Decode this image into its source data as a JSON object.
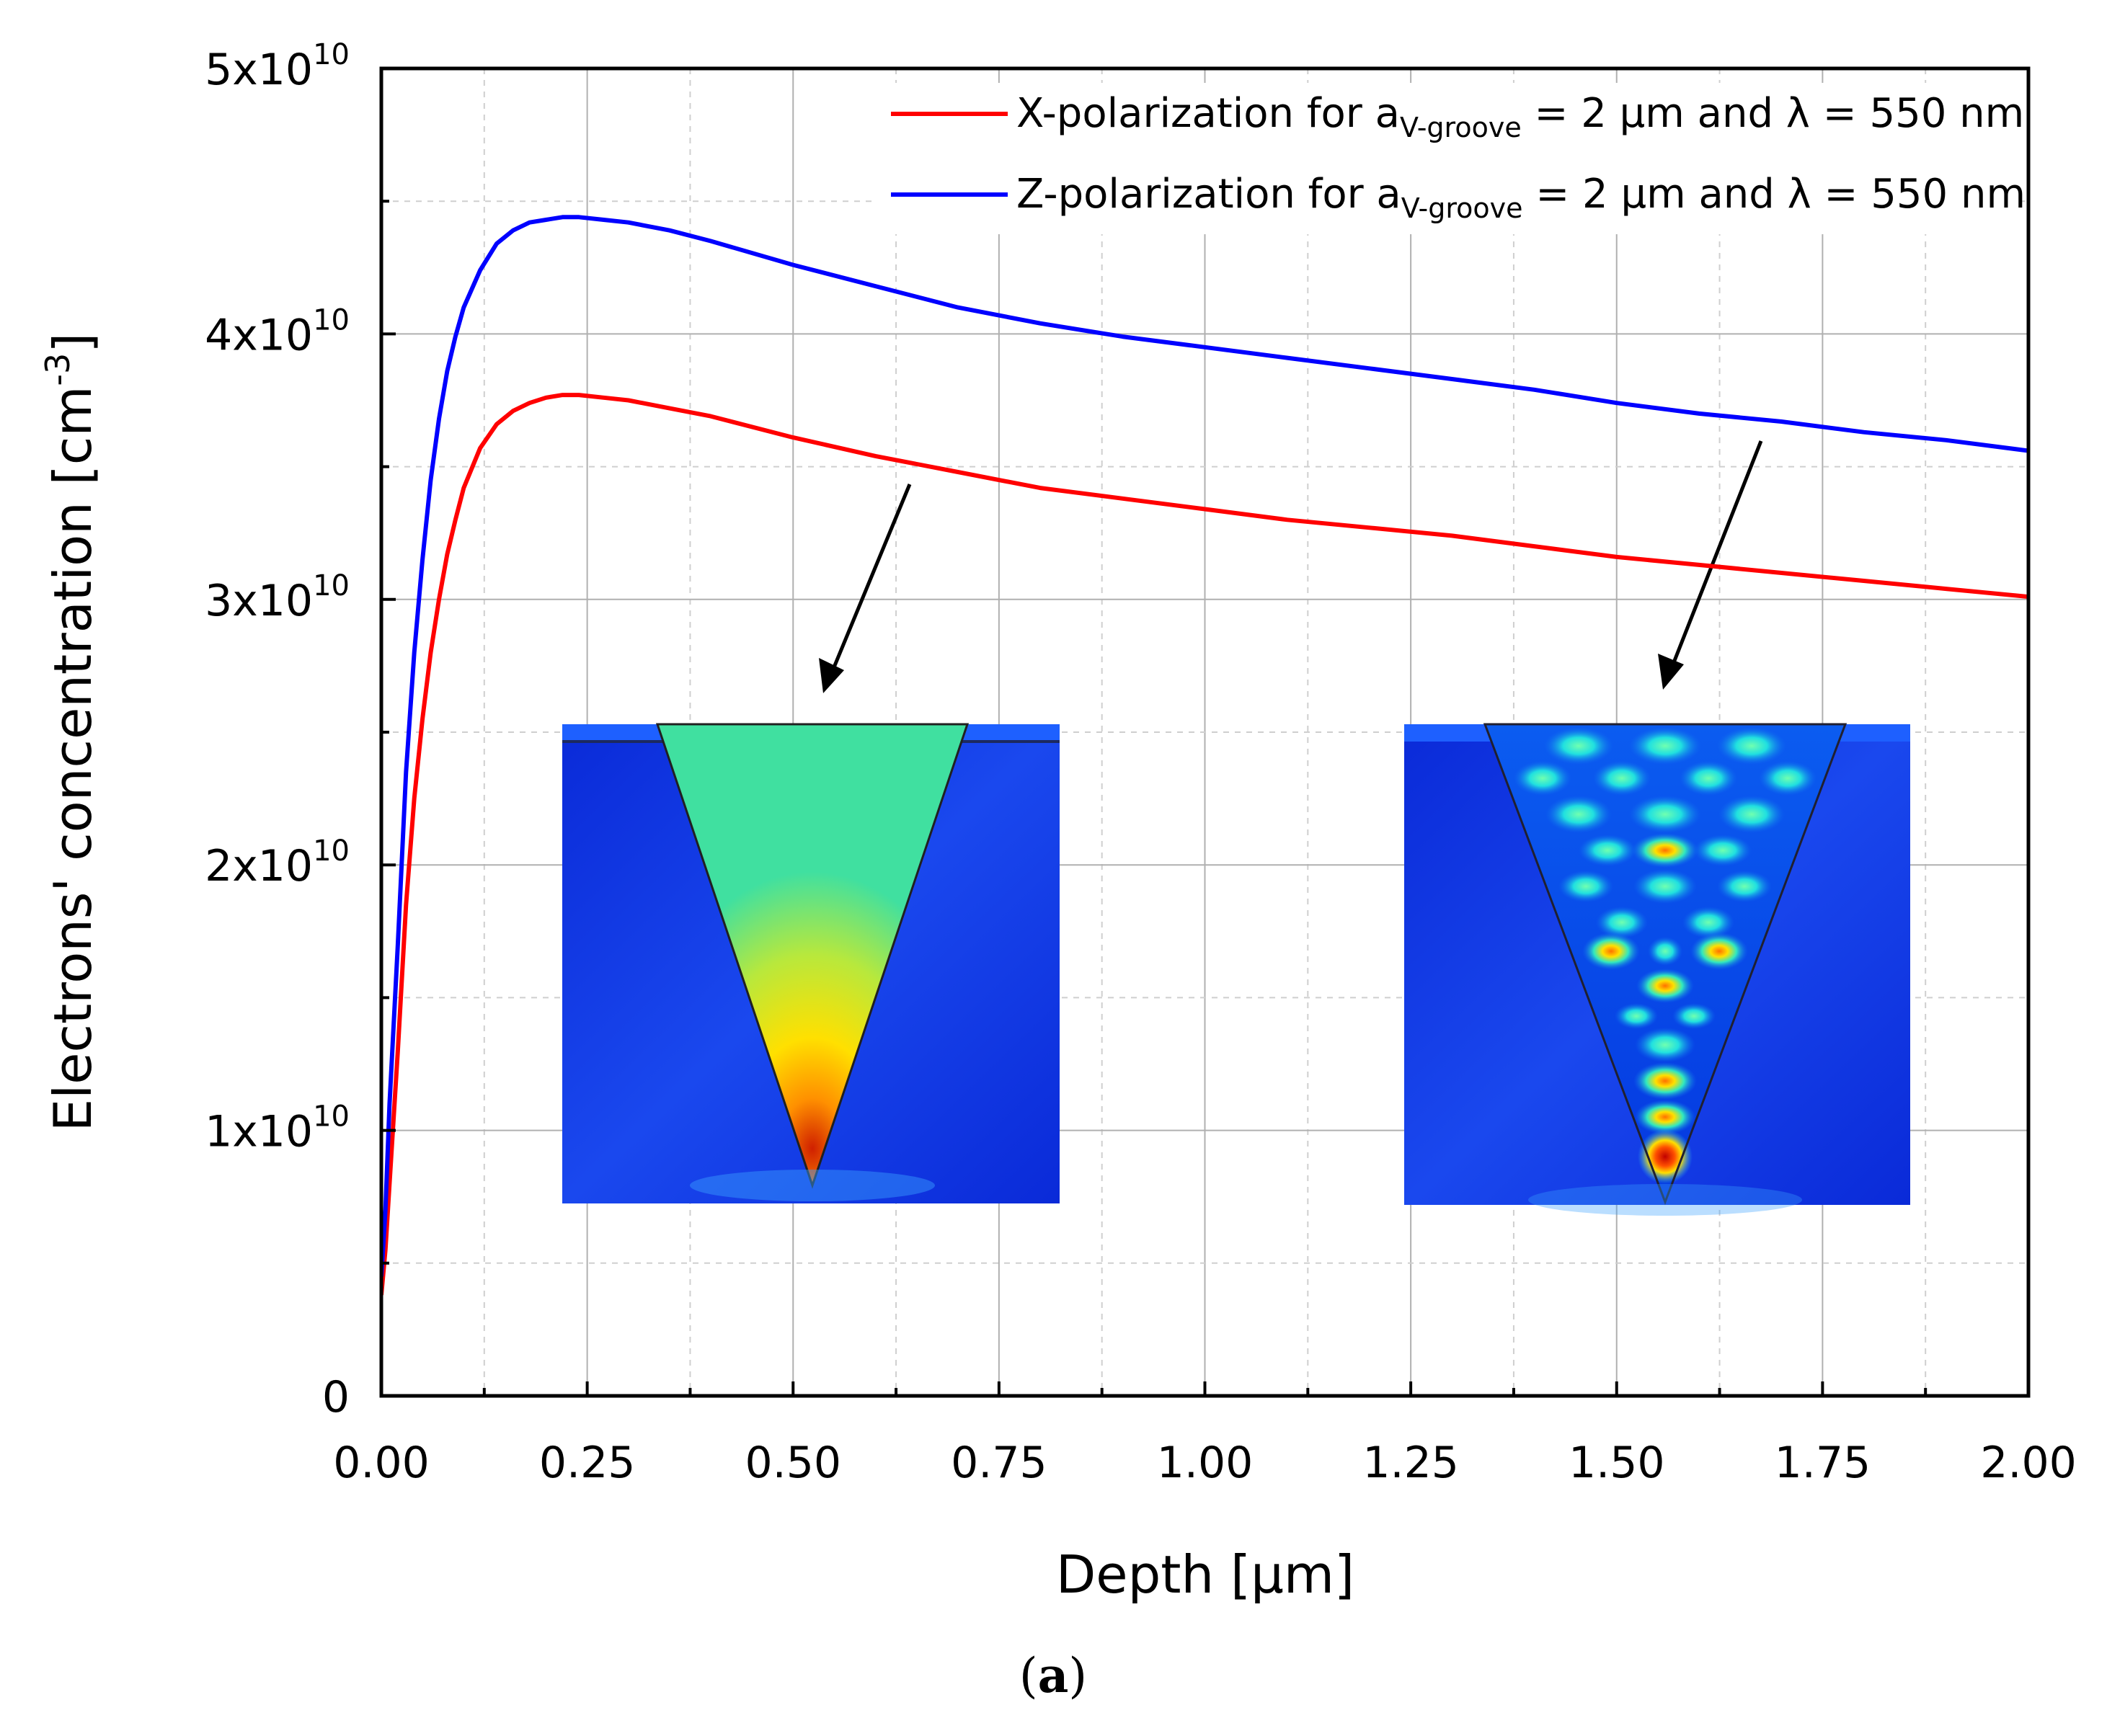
{
  "chart_data": {
    "type": "line",
    "xlabel": "Depth [μm]",
    "ylabel_main": "Electrons' concentration [cm",
    "ylabel_sup": "-3",
    "xlim": [
      0,
      2
    ],
    "ylim": [
      0,
      50000000000.0
    ],
    "x_ticks": [
      0,
      0.25,
      0.5,
      0.75,
      1.0,
      1.25,
      1.5,
      1.75,
      2.0
    ],
    "x_tick_labels": [
      "0.00",
      "0.25",
      "0.50",
      "0.75",
      "1.00",
      "1.25",
      "1.50",
      "1.75",
      "2.00"
    ],
    "y_ticks": [
      0,
      10000000000.0,
      20000000000.0,
      30000000000.0,
      40000000000.0,
      50000000000.0
    ],
    "y_tick_labels": [
      {
        "base": "0",
        "exp": ""
      },
      {
        "base": "1x10",
        "exp": "10"
      },
      {
        "base": "2x10",
        "exp": "10"
      },
      {
        "base": "3x10",
        "exp": "10"
      },
      {
        "base": "4x10",
        "exp": "10"
      },
      {
        "base": "5x10",
        "exp": "10"
      }
    ],
    "grid": true,
    "legend_position": "top-right",
    "series": [
      {
        "name": "X-polarization",
        "legend": {
          "pre": "X-polarization for a",
          "sub": "V-groove",
          "post": " = 2 μm and λ = 550 nm"
        },
        "color": "#ff0000",
        "x": [
          0.0,
          0.005,
          0.01,
          0.02,
          0.03,
          0.04,
          0.05,
          0.06,
          0.07,
          0.08,
          0.09,
          0.1,
          0.12,
          0.14,
          0.16,
          0.18,
          0.2,
          0.22,
          0.24,
          0.27,
          0.3,
          0.35,
          0.4,
          0.5,
          0.6,
          0.7,
          0.8,
          0.9,
          1.0,
          1.1,
          1.2,
          1.3,
          1.4,
          1.5,
          1.6,
          1.7,
          1.8,
          1.9,
          2.0
        ],
        "y": [
          3800000000.0,
          5500000000.0,
          8000000000.0,
          13000000000.0,
          18500000000.0,
          22500000000.0,
          25500000000.0,
          28000000000.0,
          30000000000.0,
          31700000000.0,
          33000000000.0,
          34200000000.0,
          35700000000.0,
          36600000000.0,
          37100000000.0,
          37400000000.0,
          37600000000.0,
          37700000000.0,
          37700000000.0,
          37600000000.0,
          37500000000.0,
          37200000000.0,
          36900000000.0,
          36100000000.0,
          35400000000.0,
          34800000000.0,
          34200000000.0,
          33800000000.0,
          33400000000.0,
          33000000000.0,
          32700000000.0,
          32400000000.0,
          32000000000.0,
          31600000000.0,
          31300000000.0,
          31000000000.0,
          30700000000.0,
          30400000000.0,
          30100000000.0
        ]
      },
      {
        "name": "Z-polarization",
        "legend": {
          "pre": "Z-polarization for a",
          "sub": "V-groove",
          "post": " = 2 μm and λ = 550 nm"
        },
        "color": "#0000ff",
        "x": [
          0.0,
          0.005,
          0.01,
          0.02,
          0.03,
          0.04,
          0.05,
          0.06,
          0.07,
          0.08,
          0.09,
          0.1,
          0.12,
          0.14,
          0.16,
          0.18,
          0.2,
          0.22,
          0.24,
          0.27,
          0.3,
          0.35,
          0.4,
          0.5,
          0.6,
          0.7,
          0.8,
          0.9,
          1.0,
          1.1,
          1.2,
          1.3,
          1.4,
          1.5,
          1.6,
          1.7,
          1.8,
          1.9,
          2.0
        ],
        "y": [
          4500000000.0,
          7000000000.0,
          11000000000.0,
          17000000000.0,
          23500000000.0,
          28000000000.0,
          31500000000.0,
          34500000000.0,
          36800000000.0,
          38600000000.0,
          39900000000.0,
          41000000000.0,
          42400000000.0,
          43400000000.0,
          43900000000.0,
          44200000000.0,
          44300000000.0,
          44400000000.0,
          44400000000.0,
          44300000000.0,
          44200000000.0,
          43900000000.0,
          43500000000.0,
          42600000000.0,
          41800000000.0,
          41000000000.0,
          40400000000.0,
          39900000000.0,
          39500000000.0,
          39100000000.0,
          38700000000.0,
          38300000000.0,
          37900000000.0,
          37400000000.0,
          37000000000.0,
          36700000000.0,
          36300000000.0,
          36000000000.0,
          35600000000.0
        ]
      }
    ]
  },
  "panel_label": {
    "open": "(",
    "letter": "a",
    "close": ")"
  },
  "colors": {
    "axis": "#000000",
    "grid_major": "#b0b0b0",
    "grid_minor": "#cfcfcf"
  }
}
